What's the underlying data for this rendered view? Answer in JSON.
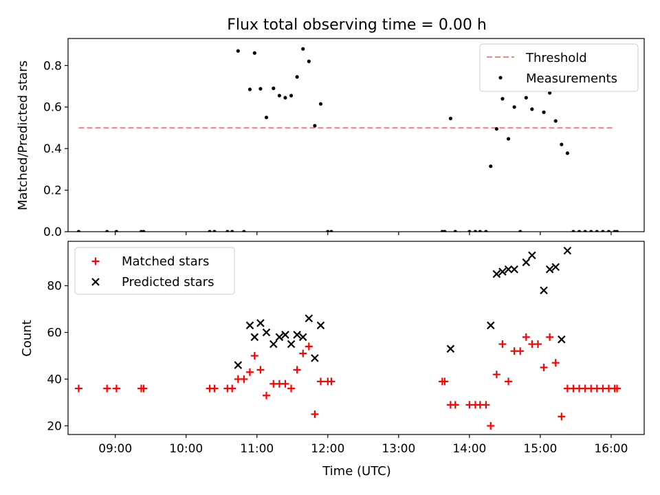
{
  "chart_data": [
    {
      "type": "scatter",
      "title": "Flux total observing time = 0.00 h",
      "xlabel": "",
      "ylabel": "Matched/Predicted stars",
      "xlim": [
        "08:20",
        "16:28"
      ],
      "ylim": [
        0,
        0.93
      ],
      "yticks": [
        0.0,
        0.2,
        0.4,
        0.6,
        0.8
      ],
      "grid": false,
      "legend": "top-right",
      "threshold": {
        "name": "Threshold",
        "value": 0.5,
        "x": [
          "08:29",
          "16:02"
        ],
        "color": "#ff7f7f",
        "style": "dashed"
      },
      "series": [
        {
          "name": "Measurements",
          "marker": "dot",
          "color": "#000000",
          "points": [
            [
              "08:29",
              0.0
            ],
            [
              "08:53",
              0.0
            ],
            [
              "09:01",
              0.0
            ],
            [
              "09:22",
              0.0
            ],
            [
              "09:24",
              0.0
            ],
            [
              "10:20",
              0.0
            ],
            [
              "10:24",
              0.0
            ],
            [
              "10:35",
              0.0
            ],
            [
              "10:39",
              0.0
            ],
            [
              "10:44",
              0.87
            ],
            [
              "10:49",
              0.0
            ],
            [
              "10:54",
              0.685
            ],
            [
              "10:58",
              0.86
            ],
            [
              "11:03",
              0.688
            ],
            [
              "11:08",
              0.55
            ],
            [
              "11:14",
              0.69
            ],
            [
              "11:19",
              0.655
            ],
            [
              "11:24",
              0.645
            ],
            [
              "11:29",
              0.655
            ],
            [
              "11:34",
              0.745
            ],
            [
              "11:39",
              0.88
            ],
            [
              "11:44",
              0.82
            ],
            [
              "11:49",
              0.51
            ],
            [
              "11:54",
              0.615
            ],
            [
              "12:00",
              0.0
            ],
            [
              "12:03",
              0.0
            ],
            [
              "13:37",
              0.0
            ],
            [
              "13:39",
              0.0
            ],
            [
              "13:44",
              0.545
            ],
            [
              "13:48",
              0.0
            ],
            [
              "14:00",
              0.0
            ],
            [
              "14:05",
              0.0
            ],
            [
              "14:09",
              0.0
            ],
            [
              "14:14",
              0.0
            ],
            [
              "14:18",
              0.315
            ],
            [
              "14:23",
              0.495
            ],
            [
              "14:28",
              0.64
            ],
            [
              "14:33",
              0.447
            ],
            [
              "14:38",
              0.6
            ],
            [
              "14:43",
              0.0
            ],
            [
              "14:48",
              0.645
            ],
            [
              "14:53",
              0.59
            ],
            [
              "15:03",
              0.575
            ],
            [
              "15:08",
              0.668
            ],
            [
              "15:13",
              0.533
            ],
            [
              "15:18",
              0.42
            ],
            [
              "15:23",
              0.378
            ],
            [
              "15:28",
              0.0
            ],
            [
              "15:33",
              0.0
            ],
            [
              "15:38",
              0.0
            ],
            [
              "15:43",
              0.0
            ],
            [
              "15:48",
              0.0
            ],
            [
              "15:53",
              0.0
            ],
            [
              "15:58",
              0.0
            ],
            [
              "16:03",
              0.0
            ],
            [
              "16:05",
              0.0
            ]
          ]
        }
      ]
    },
    {
      "type": "scatter",
      "title": "",
      "xlabel": "Time (UTC)",
      "ylabel": "Count",
      "xlim": [
        "08:20",
        "16:28"
      ],
      "ylim": [
        16.3,
        99
      ],
      "yticks": [
        20,
        40,
        60,
        80
      ],
      "xticks": [
        "09:00",
        "10:00",
        "11:00",
        "12:00",
        "13:00",
        "14:00",
        "15:00",
        "16:00"
      ],
      "grid": false,
      "legend": "top-left",
      "series": [
        {
          "name": "Matched stars",
          "marker": "plus",
          "color": "#ff0000",
          "points": [
            [
              "08:29",
              36
            ],
            [
              "08:53",
              36
            ],
            [
              "09:01",
              36
            ],
            [
              "09:22",
              36
            ],
            [
              "09:24",
              36
            ],
            [
              "10:20",
              36
            ],
            [
              "10:24",
              36
            ],
            [
              "10:35",
              36
            ],
            [
              "10:39",
              36
            ],
            [
              "10:44",
              40
            ],
            [
              "10:49",
              40
            ],
            [
              "10:54",
              43
            ],
            [
              "10:58",
              50
            ],
            [
              "11:03",
              44
            ],
            [
              "11:08",
              33
            ],
            [
              "11:14",
              38
            ],
            [
              "11:19",
              38
            ],
            [
              "11:24",
              38
            ],
            [
              "11:29",
              36
            ],
            [
              "11:34",
              44
            ],
            [
              "11:39",
              51
            ],
            [
              "11:44",
              54
            ],
            [
              "11:49",
              25
            ],
            [
              "11:54",
              39
            ],
            [
              "12:00",
              39
            ],
            [
              "12:03",
              39
            ],
            [
              "13:37",
              39
            ],
            [
              "13:39",
              39
            ],
            [
              "13:44",
              29
            ],
            [
              "13:48",
              29
            ],
            [
              "14:00",
              29
            ],
            [
              "14:05",
              29
            ],
            [
              "14:09",
              29
            ],
            [
              "14:14",
              29
            ],
            [
              "14:18",
              20
            ],
            [
              "14:23",
              42
            ],
            [
              "14:28",
              55
            ],
            [
              "14:33",
              39
            ],
            [
              "14:38",
              52
            ],
            [
              "14:43",
              52
            ],
            [
              "14:48",
              58
            ],
            [
              "14:53",
              55
            ],
            [
              "14:58",
              55
            ],
            [
              "15:03",
              45
            ],
            [
              "15:08",
              58
            ],
            [
              "15:13",
              47
            ],
            [
              "15:18",
              24
            ],
            [
              "15:23",
              36
            ],
            [
              "15:28",
              36
            ],
            [
              "15:33",
              36
            ],
            [
              "15:38",
              36
            ],
            [
              "15:43",
              36
            ],
            [
              "15:48",
              36
            ],
            [
              "15:53",
              36
            ],
            [
              "15:58",
              36
            ],
            [
              "16:03",
              36
            ],
            [
              "16:05",
              36
            ]
          ]
        },
        {
          "name": "Predicted stars",
          "marker": "x",
          "color": "#000000",
          "points": [
            [
              "10:44",
              46
            ],
            [
              "10:54",
              63
            ],
            [
              "10:58",
              58
            ],
            [
              "11:03",
              64
            ],
            [
              "11:08",
              60
            ],
            [
              "11:14",
              55
            ],
            [
              "11:19",
              58
            ],
            [
              "11:24",
              59
            ],
            [
              "11:29",
              55
            ],
            [
              "11:34",
              59
            ],
            [
              "11:39",
              58
            ],
            [
              "11:44",
              66
            ],
            [
              "11:49",
              49
            ],
            [
              "11:54",
              63
            ],
            [
              "13:44",
              53
            ],
            [
              "14:18",
              63
            ],
            [
              "14:23",
              85
            ],
            [
              "14:28",
              86
            ],
            [
              "14:33",
              87
            ],
            [
              "14:38",
              87
            ],
            [
              "14:48",
              90
            ],
            [
              "14:53",
              93
            ],
            [
              "15:03",
              78
            ],
            [
              "15:08",
              87
            ],
            [
              "15:13",
              88
            ],
            [
              "15:18",
              57
            ],
            [
              "15:23",
              95
            ]
          ]
        }
      ]
    }
  ]
}
